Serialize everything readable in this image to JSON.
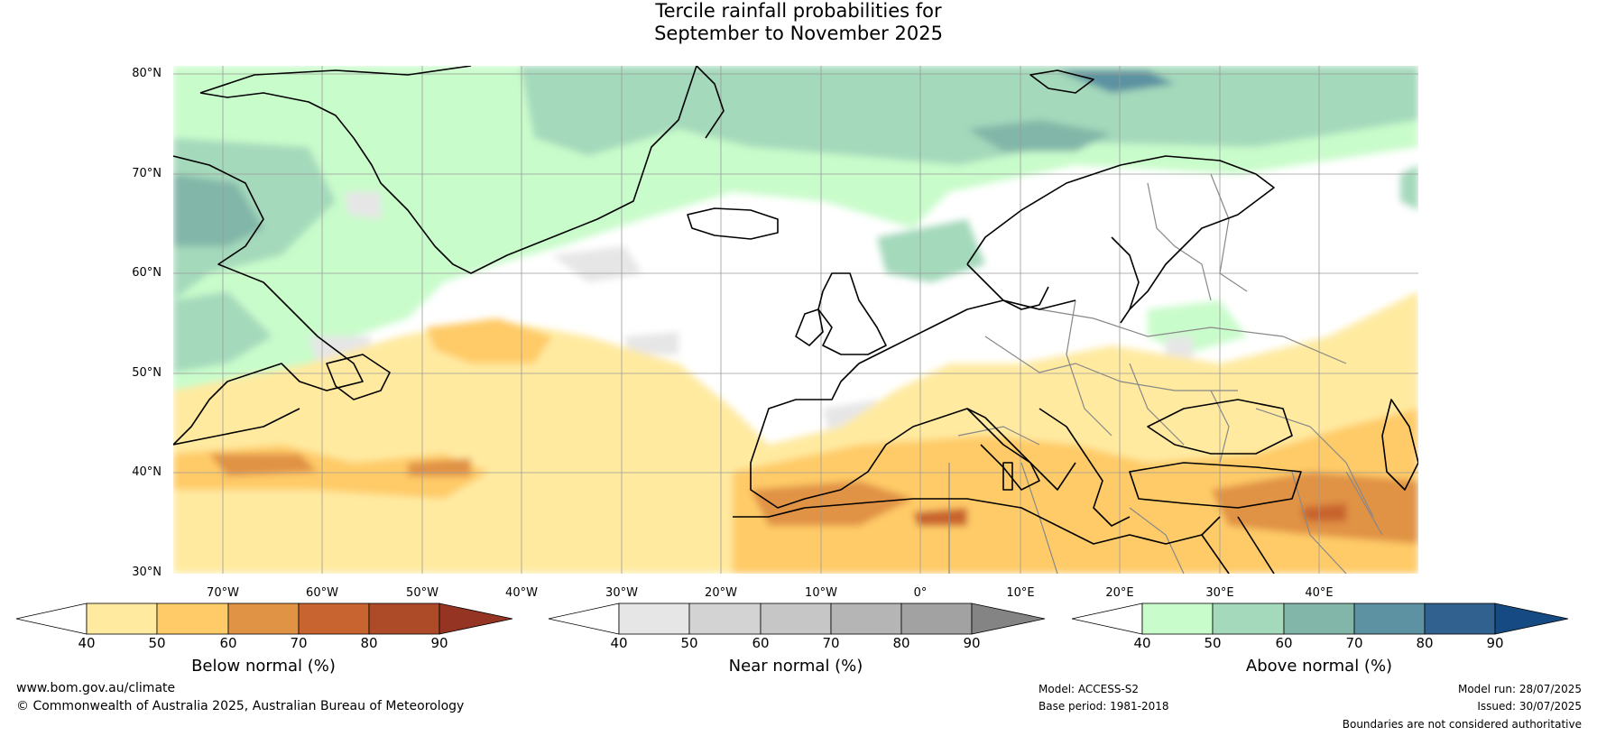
{
  "title": {
    "line1": "Tercile rainfall probabilities for",
    "line2": "September to November 2025"
  },
  "map": {
    "lat_labels": [
      "80°N",
      "70°N",
      "60°N",
      "50°N",
      "40°N",
      "30°N"
    ],
    "lon_labels": [
      "70°W",
      "60°W",
      "50°W",
      "40°W",
      "30°W",
      "20°W",
      "10°W",
      "0°",
      "10°E",
      "20°E",
      "30°E",
      "40°E"
    ]
  },
  "colorbars": [
    {
      "label": "Below normal (%)",
      "ticks": [
        "40",
        "50",
        "60",
        "70",
        "80",
        "90"
      ],
      "colors": [
        "#ffffff",
        "#ffeaa0",
        "#ffcb68",
        "#e09245",
        "#c8642f",
        "#ad4b28",
        "#963424"
      ]
    },
    {
      "label": "Near normal (%)",
      "ticks": [
        "40",
        "50",
        "60",
        "70",
        "80",
        "90"
      ],
      "colors": [
        "#ffffff",
        "#e6e6e6",
        "#d3d3d3",
        "#c6c6c6",
        "#b5b5b5",
        "#a2a2a2",
        "#848484"
      ]
    },
    {
      "label": "Above normal (%)",
      "ticks": [
        "40",
        "50",
        "60",
        "70",
        "80",
        "90"
      ],
      "colors": [
        "#ffffff",
        "#c9fccb",
        "#a4d9bb",
        "#82b6a8",
        "#5c92a1",
        "#30618f",
        "#164a82"
      ]
    }
  ],
  "footer": {
    "website": "www.bom.gov.au/climate",
    "copyright": "© Commonwealth of Australia 2025, Australian Bureau of Meteorology",
    "model": "Model: ACCESS-S2",
    "base_period": "Base period: 1981-2018",
    "model_run": "Model run: 28/07/2025",
    "issued": "Issued: 30/07/2025",
    "disclaimer": "Boundaries are not considered authoritative"
  }
}
